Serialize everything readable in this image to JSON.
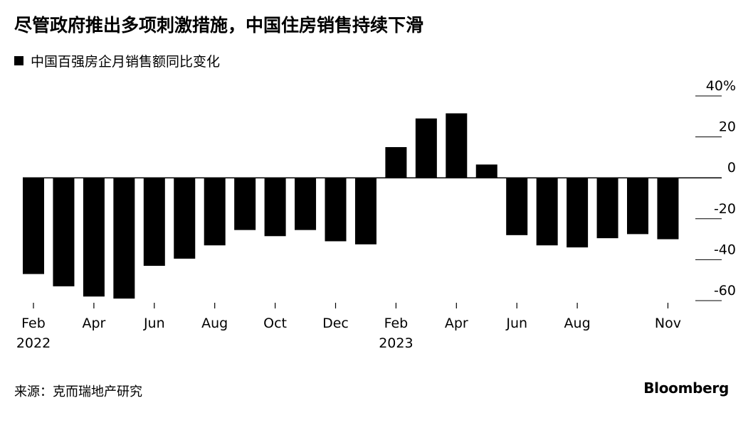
{
  "title": "尽管政府推出多项刺激措施，中国住房销售持续下滑",
  "legend_label": "中国百强房企月销售额同比变化",
  "source": "来源：克而瑞地产研究",
  "brand": "Bloomberg",
  "colors": {
    "bar": "#000000",
    "grid": "#000000"
  },
  "chart_data": {
    "type": "bar",
    "categories": [
      "2022-02",
      "2022-03",
      "2022-04",
      "2022-05",
      "2022-06",
      "2022-07",
      "2022-08",
      "2022-09",
      "2022-10",
      "2022-11",
      "2022-12",
      "2023-01",
      "2023-02",
      "2023-03",
      "2023-04",
      "2023-05",
      "2023-06",
      "2023-07",
      "2023-08",
      "2023-09",
      "2023-10",
      "2023-11"
    ],
    "series": [
      {
        "values": [
          -47,
          -53,
          -58,
          -59,
          -43,
          -39.5,
          -33,
          -25.5,
          -28.5,
          -25.5,
          -31,
          -32.5,
          15,
          29,
          31.5,
          6.5,
          -28,
          -33,
          -34,
          -29.5,
          -27.5,
          -30
        ]
      }
    ],
    "ylim": [
      -60,
      40
    ],
    "yticks": [
      40,
      20,
      0,
      -20,
      -40,
      -60
    ],
    "ytick_labels": [
      "40%",
      "20",
      "0",
      "-20",
      "-40",
      "-60"
    ],
    "xtick_labels": [
      {
        "index": 0,
        "label": "Feb",
        "year": "2022"
      },
      {
        "index": 2,
        "label": "Apr"
      },
      {
        "index": 4,
        "label": "Jun"
      },
      {
        "index": 6,
        "label": "Aug"
      },
      {
        "index": 8,
        "label": "Oct"
      },
      {
        "index": 10,
        "label": "Dec"
      },
      {
        "index": 12,
        "label": "Feb",
        "year": "2023"
      },
      {
        "index": 14,
        "label": "Apr"
      },
      {
        "index": 16,
        "label": "Jun"
      },
      {
        "index": 18,
        "label": "Aug"
      },
      {
        "index": 21,
        "label": "Nov"
      }
    ],
    "grid": true,
    "legend": "top-left"
  }
}
